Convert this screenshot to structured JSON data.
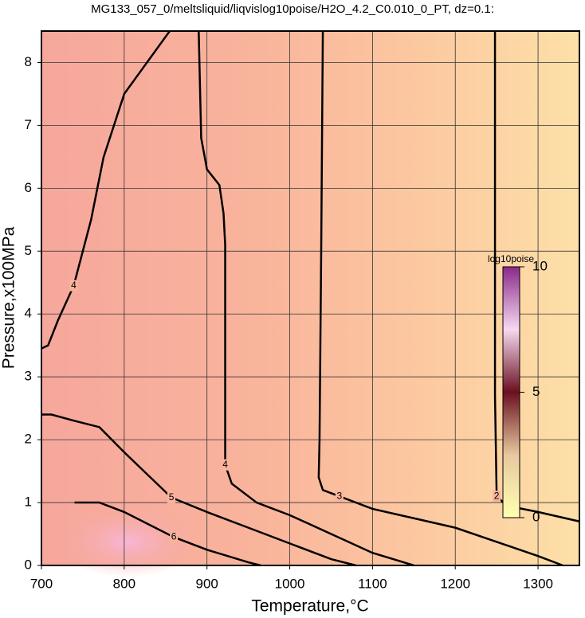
{
  "chart_data": {
    "type": "contour",
    "title": "MG133_057_0/meltsliquid/liqvislog10poise/H2O_4.2_C0.010_0_PT, dz=0.1:",
    "xlabel": "Temperature,°C",
    "ylabel": "Pressure,x100MPa",
    "xlim": [
      700,
      1350
    ],
    "ylim": [
      0,
      8.5
    ],
    "xticks": [
      700,
      800,
      900,
      1000,
      1100,
      1200,
      1300
    ],
    "yticks": [
      0,
      1,
      2,
      3,
      4,
      5,
      6,
      7,
      8
    ],
    "grid": true,
    "contours": [
      {
        "level": 2,
        "x": [
          1248,
          1248,
          1248,
          1250,
          1262,
          1300,
          1350
        ],
        "y": [
          8.5,
          6.8,
          2.7,
          1.1,
          0.95,
          0.85,
          0.7
        ]
      },
      {
        "level": 3,
        "x": [
          1040,
          1038,
          1036,
          1035,
          1040,
          1060,
          1100,
          1200,
          1300,
          1330
        ],
        "y": [
          8.5,
          5.0,
          2.0,
          1.4,
          1.2,
          1.1,
          0.9,
          0.6,
          0.15,
          0
        ]
      },
      {
        "level": 4,
        "x": [
          855,
          800,
          775,
          760,
          739,
          720,
          708,
          700
        ],
        "y": [
          8.5,
          7.5,
          6.49,
          5.5,
          4.45,
          3.9,
          3.5,
          3.45
        ]
      },
      {
        "level": 4,
        "x": [
          890,
          893,
          900,
          915,
          920,
          922,
          922,
          930,
          960,
          1000,
          1050,
          1100,
          1150
        ],
        "y": [
          8.5,
          6.8,
          6.3,
          6.05,
          5.6,
          5.1,
          1.6,
          1.3,
          1.0,
          0.8,
          0.5,
          0.2,
          0
        ]
      },
      {
        "level": 5,
        "x": [
          700,
          712,
          740,
          770,
          800,
          857,
          900,
          950,
          1000,
          1050,
          1080
        ],
        "y": [
          2.4,
          2.4,
          2.3,
          2.2,
          1.8,
          1.08,
          0.85,
          0.6,
          0.35,
          0.1,
          0
        ]
      },
      {
        "level": 6,
        "x": [
          740,
          770,
          800,
          860,
          900,
          950,
          965
        ],
        "y": [
          1.0,
          1.0,
          0.85,
          0.45,
          0.25,
          0.05,
          0
        ]
      }
    ],
    "colorbar": {
      "label": "log10poise",
      "lim": [
        0,
        10
      ],
      "ticks": [
        0,
        5,
        10
      ]
    }
  }
}
